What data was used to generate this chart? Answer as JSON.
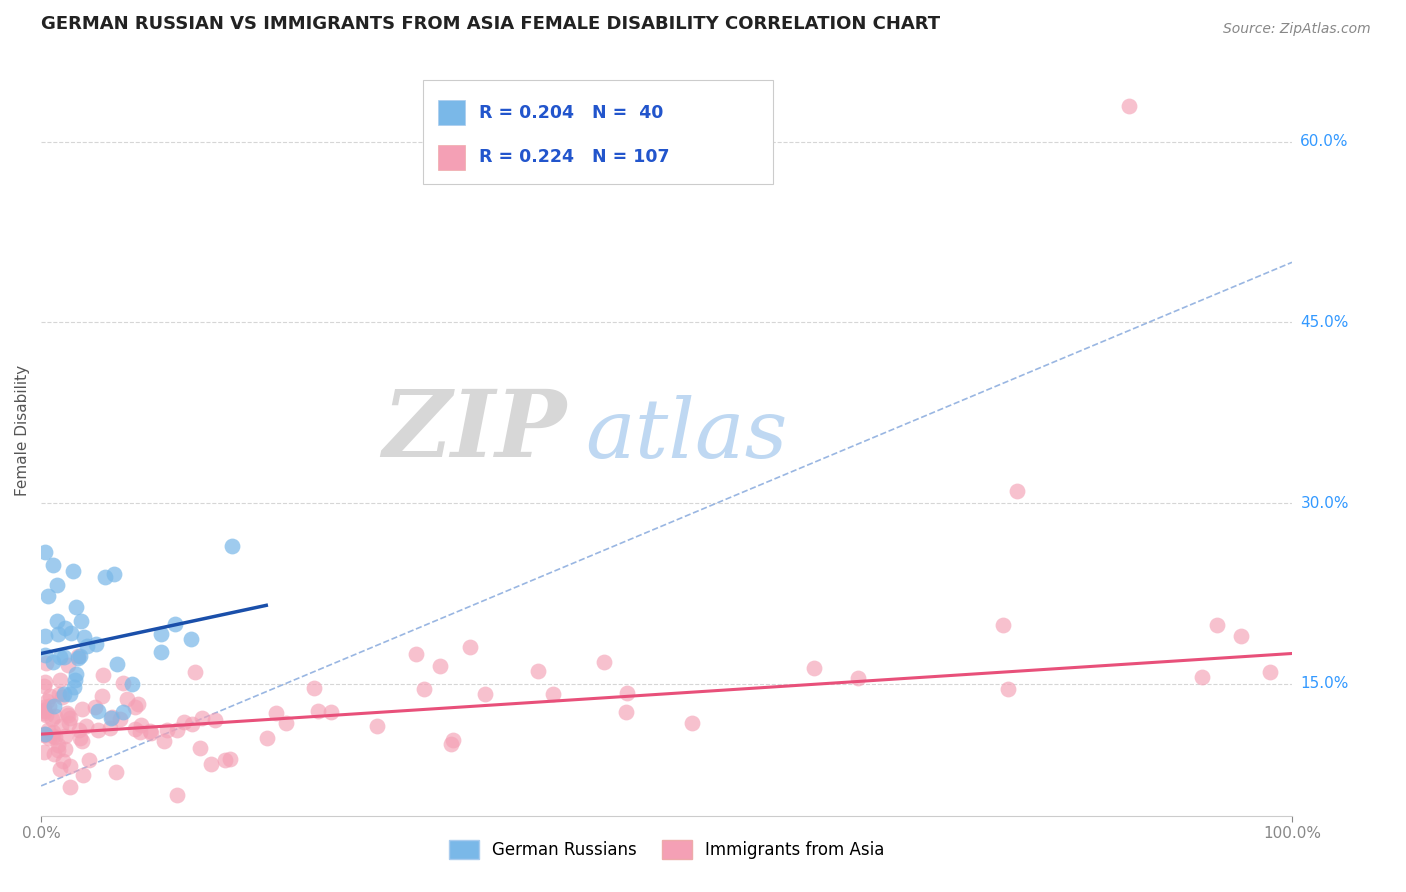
{
  "title": "GERMAN RUSSIAN VS IMMIGRANTS FROM ASIA FEMALE DISABILITY CORRELATION CHART",
  "source": "Source: ZipAtlas.com",
  "ylabel": "Female Disability",
  "y_tick_labels": [
    "15.0%",
    "30.0%",
    "45.0%",
    "60.0%"
  ],
  "y_tick_values": [
    0.15,
    0.3,
    0.45,
    0.6
  ],
  "blue_color": "#7ab8e8",
  "pink_color": "#f4a0b5",
  "trend_blue": "#1a4faa",
  "trend_pink": "#e8507a",
  "diag_color": "#88aadd",
  "watermark_zip": "#cccccc",
  "watermark_atlas": "#aaccee",
  "blue_R": 0.204,
  "blue_N": 40,
  "pink_R": 0.224,
  "pink_N": 107,
  "xlim": [
    0.0,
    1.0
  ],
  "ylim": [
    0.04,
    0.68
  ],
  "background_color": "#ffffff",
  "legend_R1": "R = 0.204",
  "legend_N1": "N =  40",
  "legend_R2": "R = 0.224",
  "legend_N2": "N = 107",
  "label_blue": "German Russians",
  "label_pink": "Immigrants from Asia"
}
